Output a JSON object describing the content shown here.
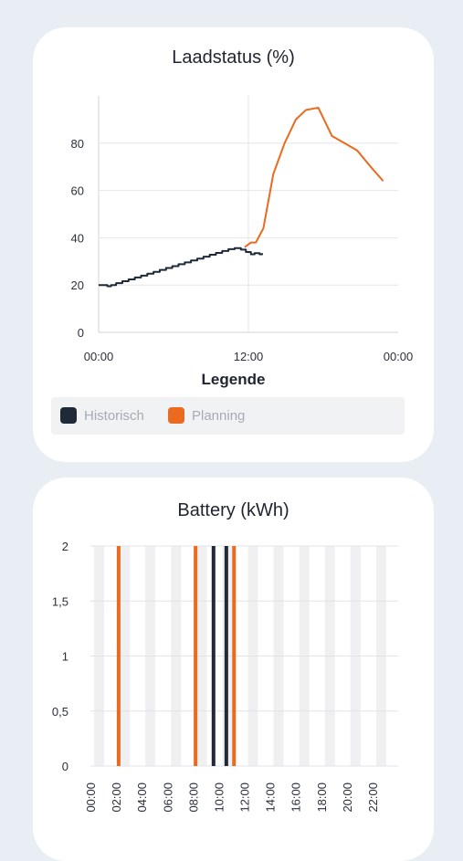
{
  "cards": [
    {
      "title": "Laadstatus (%)",
      "legend_title": "Legende",
      "legend": [
        {
          "label": "Historisch",
          "color": "#1f2938"
        },
        {
          "label": "Planning",
          "color": "#ea6a1f"
        }
      ]
    },
    {
      "title": "Battery (kWh)"
    }
  ],
  "chart_data": [
    {
      "type": "line",
      "title": "Laadstatus (%)",
      "ylim": [
        0,
        100
      ],
      "y_ticks": [
        "0",
        "20",
        "40",
        "60",
        "80"
      ],
      "y_tick_values": [
        0,
        20,
        40,
        60,
        80
      ],
      "x_ticks": [
        "00:00",
        "12:00",
        "00:00"
      ],
      "x_tick_hours": [
        0,
        12,
        24
      ],
      "xlim_hours": [
        0,
        24
      ],
      "grid": true,
      "series": [
        {
          "name": "Historisch",
          "color": "#1f2938",
          "step": true,
          "points": [
            [
              0,
              20
            ],
            [
              0.7,
              19.5
            ],
            [
              1.0,
              20
            ],
            [
              1.4,
              20.8
            ],
            [
              1.9,
              21.6
            ],
            [
              2.4,
              22.4
            ],
            [
              2.9,
              23.2
            ],
            [
              3.4,
              24.0
            ],
            [
              3.9,
              24.8
            ],
            [
              4.4,
              25.6
            ],
            [
              4.9,
              26.4
            ],
            [
              5.4,
              27.2
            ],
            [
              5.9,
              28.0
            ],
            [
              6.4,
              28.8
            ],
            [
              6.9,
              29.6
            ],
            [
              7.4,
              30.4
            ],
            [
              7.9,
              31.2
            ],
            [
              8.4,
              32.0
            ],
            [
              8.9,
              32.8
            ],
            [
              9.4,
              33.6
            ],
            [
              9.9,
              34.4
            ],
            [
              10.4,
              35.2
            ],
            [
              10.9,
              35.6
            ],
            [
              11.4,
              35.0
            ],
            [
              11.8,
              34.0
            ],
            [
              12.2,
              33.0
            ],
            [
              12.5,
              33.5
            ],
            [
              12.9,
              33.0
            ],
            [
              13.1,
              33.5
            ]
          ]
        },
        {
          "name": "Planning",
          "color": "#ea6a1f",
          "step": false,
          "points": [
            [
              11.7,
              36
            ],
            [
              12.2,
              38
            ],
            [
              12.6,
              38
            ],
            [
              13.2,
              44
            ],
            [
              14.0,
              67
            ],
            [
              14.9,
              80
            ],
            [
              15.8,
              90
            ],
            [
              16.6,
              94
            ],
            [
              17.6,
              95
            ],
            [
              18.7,
              83
            ],
            [
              19.7,
              80
            ],
            [
              20.7,
              77
            ],
            [
              21.8,
              70
            ],
            [
              22.8,
              64
            ]
          ]
        }
      ]
    },
    {
      "type": "bar",
      "title": "Battery (kWh)",
      "ylim": [
        0,
        2
      ],
      "y_ticks": [
        "0",
        "0,5",
        "1",
        "1,5",
        "2"
      ],
      "y_tick_values": [
        0,
        0.5,
        1,
        1.5,
        2
      ],
      "x_ticks": [
        "00:00",
        "02:00",
        "04:00",
        "06:00",
        "08:00",
        "10:00",
        "12:00",
        "14:00",
        "16:00",
        "18:00",
        "20:00",
        "22:00"
      ],
      "x_tick_hours": [
        0,
        2,
        4,
        6,
        8,
        10,
        12,
        14,
        16,
        18,
        20,
        22
      ],
      "bars": [
        {
          "hour": 2.2,
          "value": 2,
          "color": "#ea6a1f"
        },
        {
          "hour": 8.2,
          "value": 2,
          "color": "#ea6a1f"
        },
        {
          "hour": 9.6,
          "value": 2,
          "color": "#1f2938"
        },
        {
          "hour": 10.6,
          "value": 2,
          "color": "#1f2938"
        },
        {
          "hour": 11.2,
          "value": 2,
          "color": "#ea6a1f"
        }
      ]
    }
  ]
}
